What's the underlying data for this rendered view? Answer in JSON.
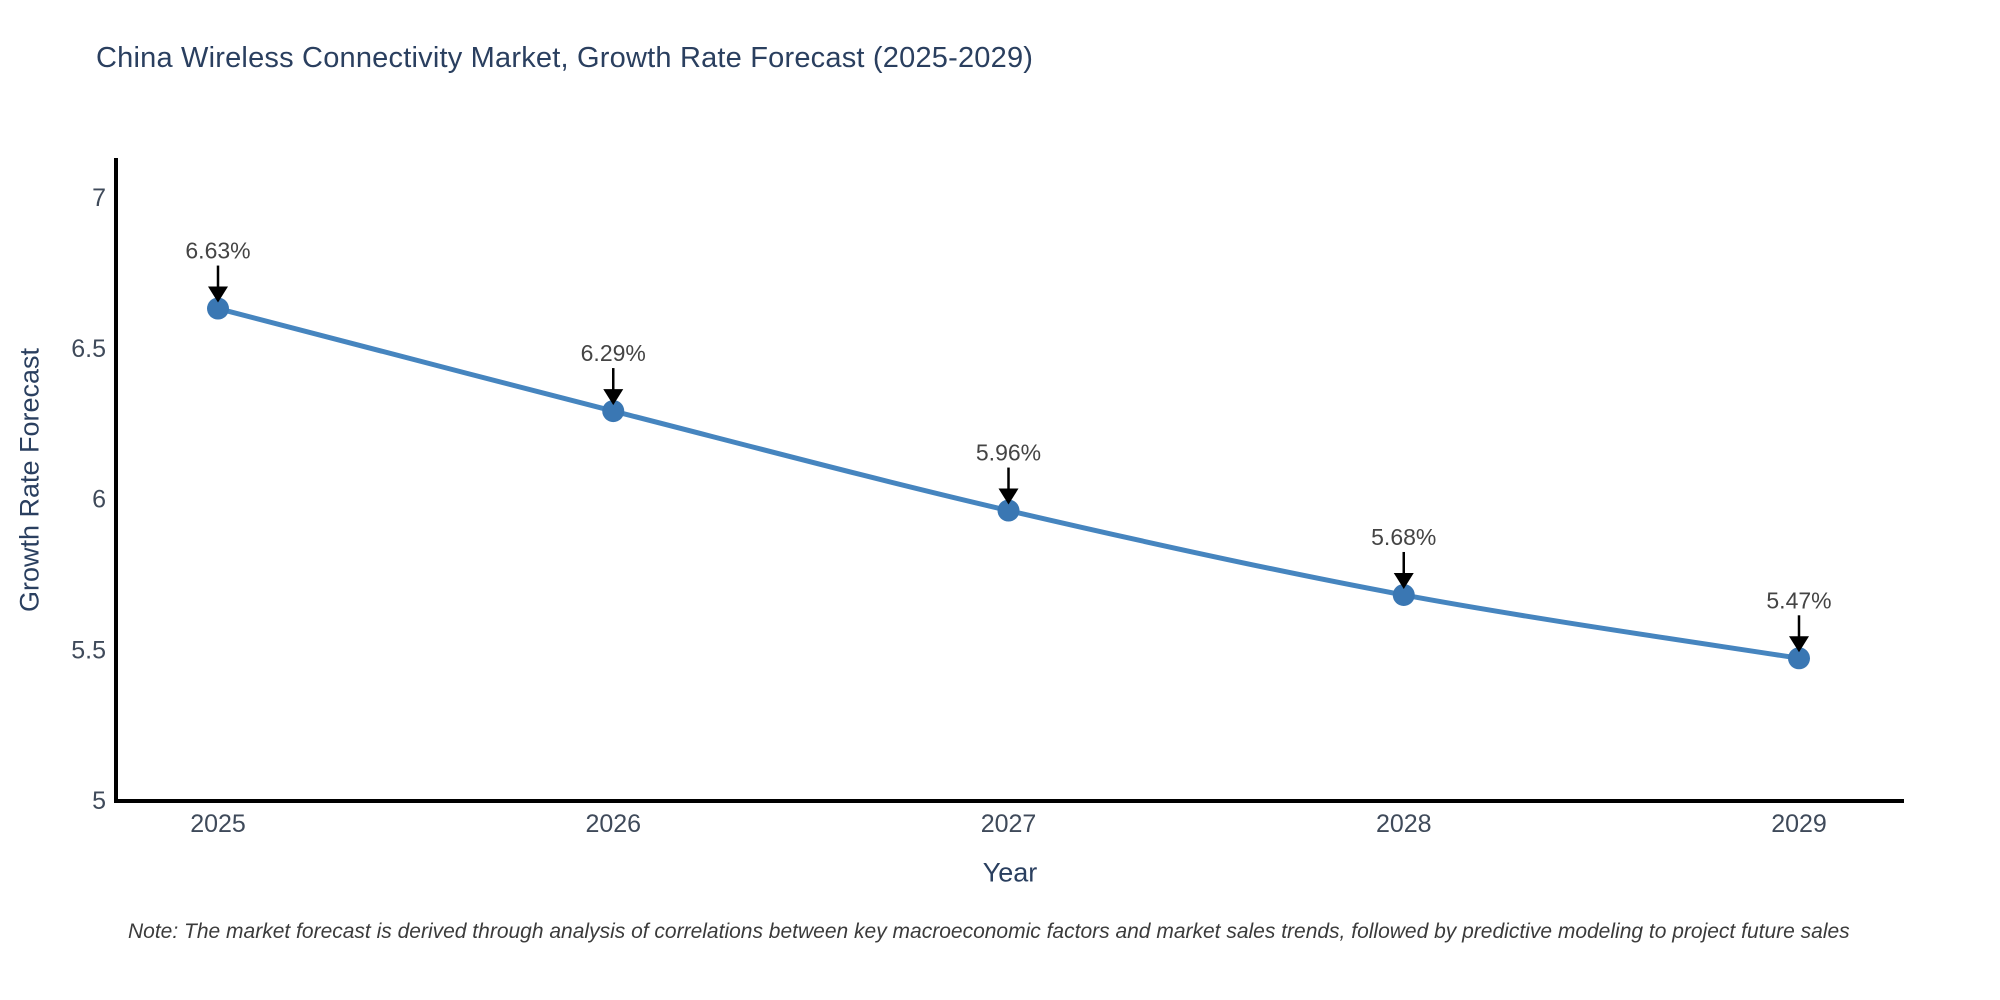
{
  "header": {
    "title": "China Wireless Connectivity Market, Growth Rate Forecast (2025-2029)"
  },
  "chart_data": {
    "type": "line",
    "title": "China Wireless Connectivity Market, Growth Rate Forecast (2025-2029)",
    "x": [
      "2025",
      "2026",
      "2027",
      "2028",
      "2029"
    ],
    "series": [
      {
        "name": "Growth Rate Forecast",
        "values": [
          6.63,
          6.29,
          5.96,
          5.68,
          5.47
        ],
        "point_labels": [
          "6.63%",
          "6.29%",
          "5.96%",
          "5.68%",
          "5.47%"
        ]
      }
    ],
    "xlabel": "Year",
    "ylabel": "Growth Rate Forecast",
    "ylim": [
      5,
      7.15
    ],
    "yticks": [
      7,
      6.5,
      6,
      5.5,
      5
    ],
    "ytick_labels": [
      "7",
      "6.5",
      "6",
      "5.5",
      "5"
    ],
    "grid": false,
    "legend_position": "none",
    "annotations_have_arrows": true,
    "colors": {
      "line": "#4685bf",
      "marker": "#3a77b3",
      "axis_line": "#000000",
      "arrow": "#000000",
      "tick_label": "#3f4a5a",
      "annotation_text": "#444444",
      "title": "#2a3f5f"
    }
  },
  "footnote": {
    "text": "Note: The market forecast is derived through analysis of correlations between key macroeconomic factors and market sales trends, followed by predictive modeling to project future sales"
  }
}
